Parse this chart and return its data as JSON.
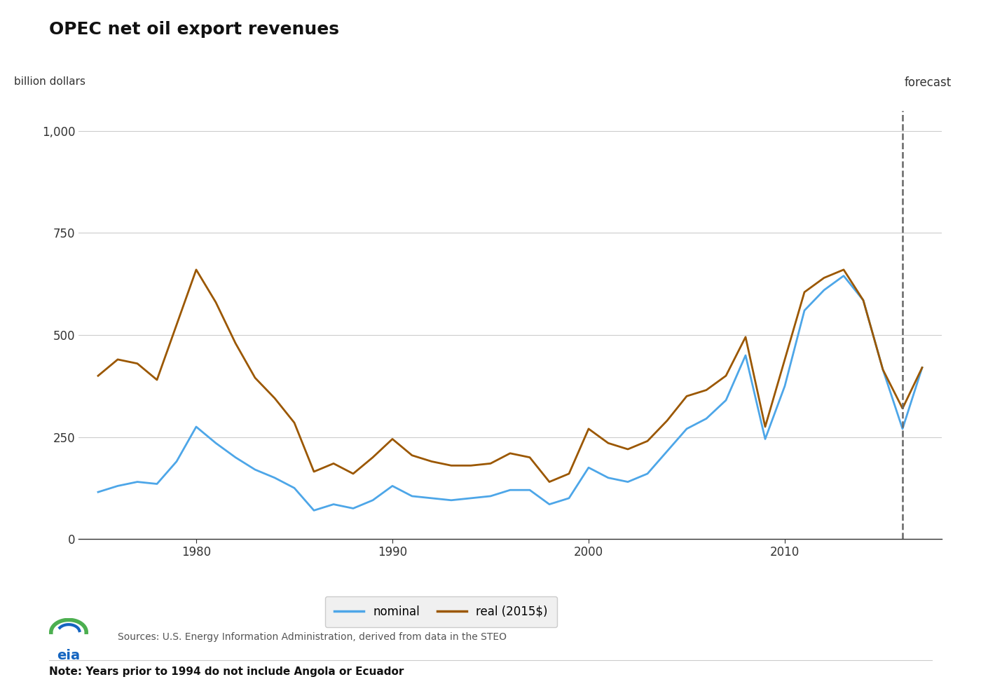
{
  "title": "OPEC net oil export revenues",
  "ylabel": "billion dollars",
  "forecast_label": "forecast",
  "forecast_year": 2016.0,
  "source_text": "Sources: U.S. Energy Information Administration, derived from data in the STEO",
  "note_text": "Note: Years prior to 1994 do not include Angola or Ecuador",
  "legend_nominal": "nominal",
  "legend_real": "real (2015$)",
  "color_nominal": "#4da6e8",
  "color_real": "#9B5700",
  "background_color": "#ffffff",
  "ylim": [
    0,
    1050
  ],
  "yticks": [
    0,
    250,
    500,
    750,
    1000
  ],
  "nominal_years": [
    1975,
    1976,
    1977,
    1978,
    1979,
    1980,
    1981,
    1982,
    1983,
    1984,
    1985,
    1986,
    1987,
    1988,
    1989,
    1990,
    1991,
    1992,
    1993,
    1994,
    1995,
    1996,
    1997,
    1998,
    1999,
    2000,
    2001,
    2002,
    2003,
    2004,
    2005,
    2006,
    2007,
    2008,
    2009,
    2010,
    2011,
    2012,
    2013,
    2014,
    2015,
    2016,
    2017
  ],
  "nominal_values": [
    115,
    130,
    140,
    135,
    190,
    275,
    235,
    200,
    170,
    150,
    125,
    70,
    85,
    75,
    95,
    130,
    105,
    100,
    95,
    100,
    105,
    120,
    120,
    85,
    100,
    175,
    150,
    140,
    160,
    215,
    270,
    295,
    340,
    450,
    245,
    375,
    560,
    610,
    645,
    585,
    415,
    270,
    420
  ],
  "real_years": [
    1975,
    1976,
    1977,
    1978,
    1979,
    1980,
    1981,
    1982,
    1983,
    1984,
    1985,
    1986,
    1987,
    1988,
    1989,
    1990,
    1991,
    1992,
    1993,
    1994,
    1995,
    1996,
    1997,
    1998,
    1999,
    2000,
    2001,
    2002,
    2003,
    2004,
    2005,
    2006,
    2007,
    2008,
    2009,
    2010,
    2011,
    2012,
    2013,
    2014,
    2015,
    2016,
    2017
  ],
  "real_values": [
    400,
    440,
    430,
    390,
    525,
    660,
    580,
    480,
    395,
    345,
    285,
    165,
    185,
    160,
    200,
    245,
    205,
    190,
    180,
    180,
    185,
    210,
    200,
    140,
    160,
    270,
    235,
    220,
    240,
    290,
    350,
    365,
    400,
    495,
    275,
    440,
    605,
    640,
    660,
    585,
    415,
    320,
    420
  ],
  "xlim": [
    1974,
    2018
  ],
  "xticks": [
    1980,
    1990,
    2000,
    2010
  ],
  "grid_color": "#cccccc"
}
